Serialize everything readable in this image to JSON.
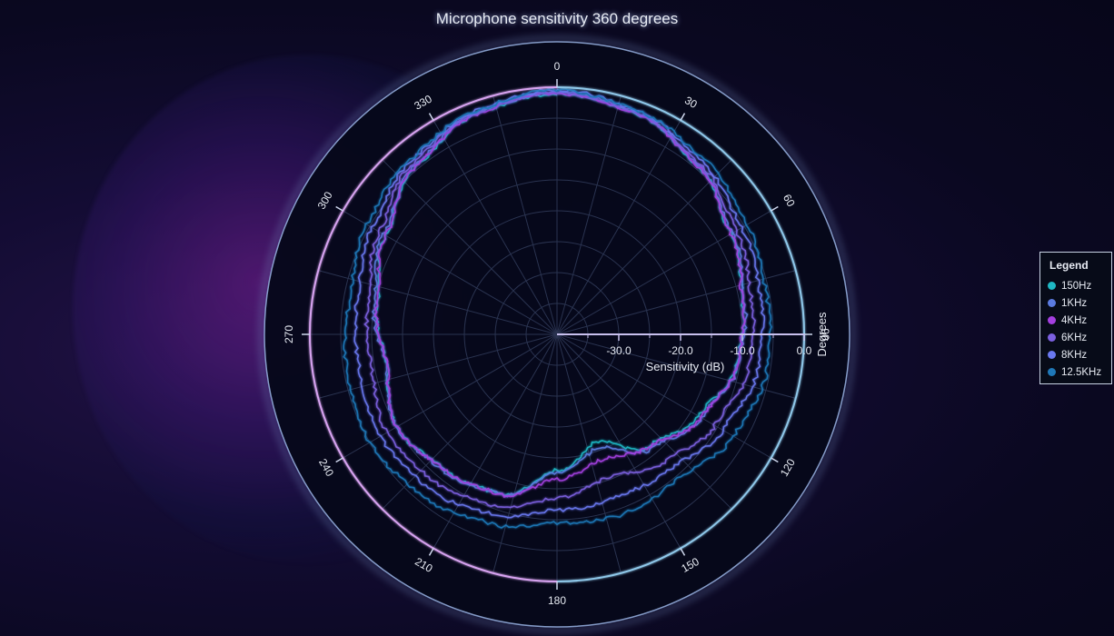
{
  "chart_data": {
    "type": "line",
    "polar": true,
    "title": "Microphone sensitivity 360 degrees",
    "angular_axis": {
      "title": "Degrees",
      "ticks": [
        "0",
        "30",
        "60",
        "90",
        "120",
        "150",
        "180",
        "210",
        "240",
        "270",
        "300",
        "330"
      ],
      "start": 0,
      "direction": "clockwise"
    },
    "radial_axis": {
      "title": "Sensitivity (dB)",
      "ticks": [
        "-30.0",
        "-20.0",
        "-10.0",
        "0.0"
      ],
      "range": [
        -40,
        0
      ]
    },
    "grid": true,
    "legend": {
      "title": "Legend",
      "position": "right"
    },
    "series": [
      {
        "name": "150Hz",
        "color": "#1fb8c4",
        "values": [
          -1.0,
          -2.0,
          -4.5,
          -7.5,
          -9.5,
          -10.5,
          -13.5,
          -16.5,
          -21.5,
          -18.0,
          -12.5,
          -11.5,
          -10.0,
          -12.0,
          -10.5,
          -8.0,
          -4.5,
          -2.0,
          -1.0
        ]
      },
      {
        "name": "1KHz",
        "color": "#5b7be0",
        "values": [
          -0.8,
          -2.0,
          -4.3,
          -7.3,
          -9.2,
          -10.3,
          -13.0,
          -16.0,
          -20.5,
          -17.5,
          -12.5,
          -11.3,
          -10.0,
          -11.8,
          -10.0,
          -7.6,
          -4.3,
          -1.9,
          -0.8
        ]
      },
      {
        "name": "4KHz",
        "color": "#a43fe0",
        "values": [
          -1.0,
          -2.0,
          -4.5,
          -7.5,
          -9.5,
          -10.5,
          -13.0,
          -16.5,
          -18.5,
          -16.5,
          -12.5,
          -11.5,
          -10.0,
          -12.0,
          -10.5,
          -8.0,
          -4.5,
          -2.0,
          -1.0
        ]
      },
      {
        "name": "6KHz",
        "color": "#7b60e0",
        "values": [
          -0.8,
          -1.8,
          -4.0,
          -6.5,
          -8.0,
          -8.5,
          -10.5,
          -13.0,
          -15.5,
          -13.5,
          -10.5,
          -9.0,
          -8.2,
          -9.5,
          -9.0,
          -6.8,
          -3.8,
          -1.8,
          -0.8
        ]
      },
      {
        "name": "8KHz",
        "color": "#6a78f0",
        "values": [
          -0.5,
          -1.5,
          -3.5,
          -5.5,
          -6.5,
          -7.0,
          -9.0,
          -11.5,
          -12.0,
          -11.5,
          -9.0,
          -7.5,
          -7.0,
          -7.5,
          -7.2,
          -5.5,
          -3.3,
          -1.5,
          -0.5
        ]
      },
      {
        "name": "12.5KHz",
        "color": "#1f78b8",
        "values": [
          -0.5,
          -1.5,
          -3.0,
          -4.5,
          -5.5,
          -5.5,
          -7.0,
          -9.5,
          -9.0,
          -9.5,
          -7.5,
          -6.0,
          -5.0,
          -5.5,
          -6.0,
          -4.5,
          -3.0,
          -1.5,
          -0.5
        ]
      }
    ],
    "angles": [
      0,
      20,
      40,
      60,
      80,
      100,
      120,
      140,
      160,
      180,
      200,
      220,
      240,
      260,
      280,
      300,
      320,
      340,
      360
    ]
  }
}
